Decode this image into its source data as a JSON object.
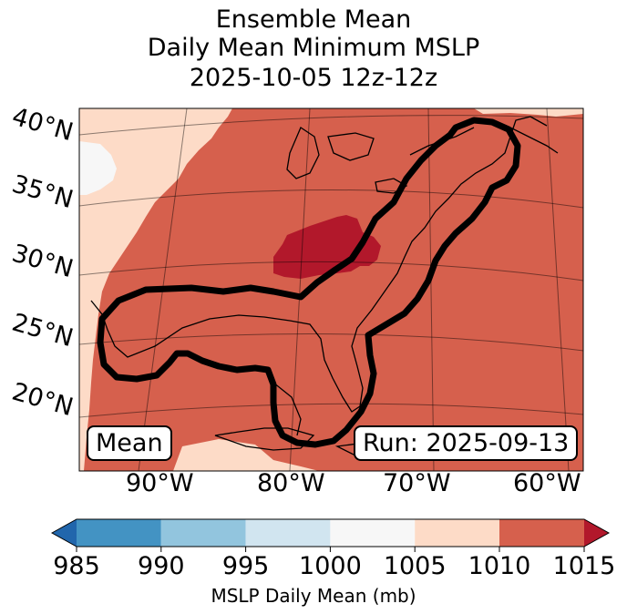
{
  "title": {
    "line1": "Ensemble Mean",
    "line2": "Daily Mean Minimum MSLP",
    "line3": "2025-10-05 12z-12z"
  },
  "map": {
    "lat_labels": [
      "40°N",
      "35°N",
      "30°N",
      "25°N",
      "20°N"
    ],
    "lon_labels": [
      "90°W",
      "80°W",
      "70°W",
      "60°W"
    ],
    "legend_box": "Mean",
    "run_box": "Run: 2025-09-13",
    "colors": {
      "land_edge": "#000000",
      "cat_1000_1005": "#f7f7f7",
      "cat_1005_1010": "#fddbc7",
      "cat_1010_1015": "#d6604d",
      "cat_1015_plus": "#b2182b",
      "track_outline": "#000000"
    }
  },
  "colorbar": {
    "label": "MSLP Daily Mean (mb)",
    "ticks": [
      "985",
      "990",
      "995",
      "1000",
      "1005",
      "1010",
      "1015"
    ],
    "colors": [
      "#2166ac",
      "#4393c3",
      "#92c5de",
      "#d1e5f0",
      "#f7f7f7",
      "#fddbc7",
      "#d6604d",
      "#b2182b"
    ]
  }
}
